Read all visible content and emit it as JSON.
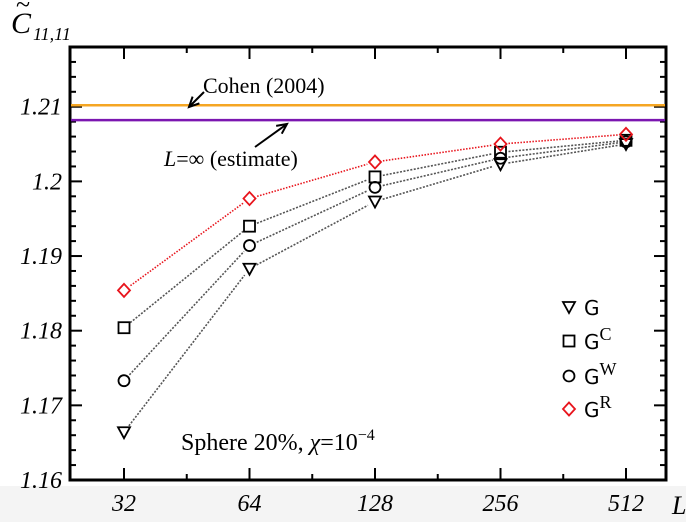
{
  "chart_data": {
    "type": "line",
    "ylabel_base": "C",
    "ylabel_tilde": "~",
    "ylabel_sub": "11,11",
    "xlabel": "L",
    "x_scale": "log2",
    "x": [
      32,
      64,
      128,
      256,
      512
    ],
    "x_tick_labels": [
      "32",
      "64",
      "128",
      "256",
      "512"
    ],
    "ylim": [
      1.16,
      1.218
    ],
    "y_ticks": [
      1.16,
      1.17,
      1.18,
      1.19,
      1.2,
      1.21
    ],
    "y_tick_labels": [
      "1.16",
      "1.17",
      "1.18",
      "1.19",
      "1.2",
      "1.21"
    ],
    "series": [
      {
        "name": "G",
        "sup": "",
        "marker": "triangle-down",
        "color": "#000000",
        "line_color": "#555555",
        "values": [
          1.1664,
          1.1883,
          1.1973,
          1.2023,
          1.205
        ]
      },
      {
        "name": "G",
        "sup": "C",
        "marker": "square",
        "color": "#000000",
        "line_color": "#555555",
        "values": [
          1.1804,
          1.194,
          1.2006,
          1.2039,
          1.2055
        ]
      },
      {
        "name": "G",
        "sup": "W",
        "marker": "circle",
        "color": "#000000",
        "line_color": "#555555",
        "values": [
          1.1733,
          1.1914,
          1.1992,
          1.2031,
          1.2053
        ]
      },
      {
        "name": "G",
        "sup": "R",
        "marker": "diamond",
        "color": "#e8141c",
        "line_color": "#e8141c",
        "values": [
          1.1854,
          1.1977,
          1.2026,
          1.205,
          1.2063
        ]
      }
    ],
    "hlines": [
      {
        "label": "Cohen (2004)",
        "y": 1.2102,
        "color": "#f5a623"
      },
      {
        "label_italic": "L",
        "label_rest": "=∞ (estimate)",
        "y": 1.2082,
        "color": "#7b16b0"
      }
    ],
    "annotation": {
      "text": "Sphere 20%,",
      "chi": "χ",
      "eq": "=10",
      "exp": "−4"
    },
    "legend_position": "right",
    "grid": false
  }
}
